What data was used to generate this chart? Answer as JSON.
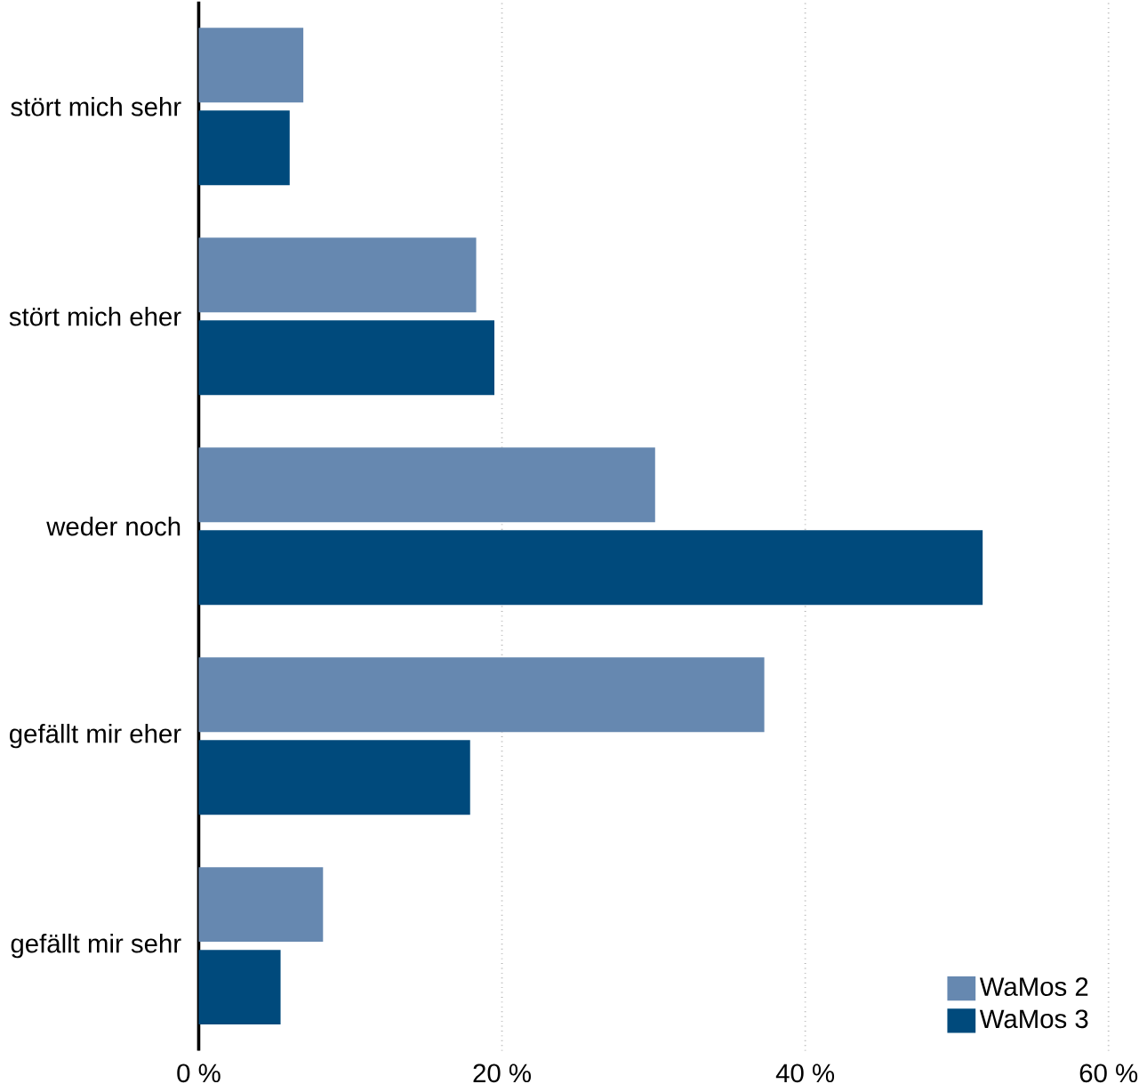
{
  "chart_data": {
    "type": "bar",
    "orientation": "horizontal",
    "categories": [
      "stört mich sehr",
      "stört mich eher",
      "weder noch",
      "gefällt mir eher",
      "gefällt mir sehr"
    ],
    "series": [
      {
        "name": "WaMos 2",
        "color": "#6688b0",
        "values": [
          6.9,
          18.3,
          30.1,
          37.3,
          8.2
        ]
      },
      {
        "name": "WaMos 3",
        "color": "#004a7c",
        "values": [
          6.0,
          19.5,
          51.7,
          17.9,
          5.4
        ]
      }
    ],
    "xlim": [
      0,
      60
    ],
    "xticks": [
      {
        "value": 0,
        "label": "0 %"
      },
      {
        "value": 20,
        "label": "20 %"
      },
      {
        "value": 40,
        "label": "40 %"
      },
      {
        "value": 60,
        "label": "60 %"
      }
    ],
    "grid": "x",
    "legend": "bottom right"
  }
}
